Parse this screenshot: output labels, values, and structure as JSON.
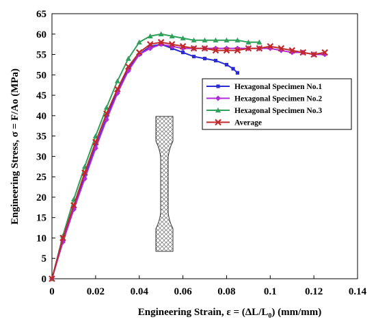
{
  "chart_data": {
    "type": "line",
    "xlabel": "Engineering Strain, ε = (ΔL/L",
    "xlabel_sub": "0",
    "xlabel_tail": ") (mm/mm)",
    "ylabel": "Engineering Stress, σ = F/Ao (MPa)",
    "xlim": [
      0,
      0.14
    ],
    "ylim": [
      0,
      65
    ],
    "xticks": [
      0,
      0.02,
      0.04,
      0.06,
      0.08,
      0.1,
      0.12,
      0.14
    ],
    "xtick_labels": [
      "0",
      "0.02",
      "0.04",
      "0.06",
      "0.08",
      "0.1",
      "0.12",
      "0.14"
    ],
    "yticks": [
      0,
      5,
      10,
      15,
      20,
      25,
      30,
      35,
      40,
      45,
      50,
      55,
      60,
      65
    ],
    "ytick_labels": [
      "0",
      "5",
      "10",
      "15",
      "20",
      "25",
      "30",
      "35",
      "40",
      "45",
      "50",
      "55",
      "60",
      "65"
    ],
    "grid": false,
    "legend_position": "right",
    "series": [
      {
        "name": "Hexagonal Specimen No.1",
        "color": "#2b2bd6",
        "marker": "square",
        "x": [
          0,
          0.005,
          0.01,
          0.015,
          0.02,
          0.025,
          0.03,
          0.035,
          0.04,
          0.045,
          0.05,
          0.055,
          0.06,
          0.065,
          0.07,
          0.075,
          0.08,
          0.083,
          0.085
        ],
        "y": [
          0,
          9.5,
          17.5,
          25,
          32.5,
          39.5,
          46,
          51.5,
          55,
          57,
          57.5,
          56.5,
          55.5,
          54.5,
          54,
          53.5,
          52.5,
          51.5,
          50.5
        ]
      },
      {
        "name": "Hexagonal Specimen No.2",
        "color": "#b02cd8",
        "marker": "diamond",
        "x": [
          0,
          0.005,
          0.01,
          0.015,
          0.02,
          0.025,
          0.03,
          0.035,
          0.04,
          0.045,
          0.05,
          0.055,
          0.06,
          0.065,
          0.07,
          0.075,
          0.08,
          0.085,
          0.09,
          0.095,
          0.1,
          0.105,
          0.11,
          0.115,
          0.12,
          0.125
        ],
        "y": [
          0,
          9,
          17,
          24.5,
          32,
          39,
          45.5,
          51,
          55,
          56.5,
          57.5,
          57,
          56.5,
          56.5,
          56.5,
          56.5,
          56.5,
          56.5,
          56.5,
          56.5,
          56.5,
          56,
          55.5,
          55.5,
          55,
          55
        ]
      },
      {
        "name": "Hexagonal Specimen No.3",
        "color": "#2fa05a",
        "marker": "triangle",
        "x": [
          0,
          0.005,
          0.01,
          0.015,
          0.02,
          0.025,
          0.03,
          0.035,
          0.04,
          0.045,
          0.05,
          0.055,
          0.06,
          0.065,
          0.07,
          0.075,
          0.08,
          0.085,
          0.09,
          0.095
        ],
        "y": [
          0,
          10.5,
          19.5,
          27.5,
          35,
          42,
          48.5,
          54,
          58,
          59.5,
          60,
          59.5,
          59,
          58.5,
          58.5,
          58.5,
          58.5,
          58.5,
          58,
          58
        ]
      },
      {
        "name": "Average",
        "color": "#c0282a",
        "marker": "x",
        "x": [
          0,
          0.005,
          0.01,
          0.015,
          0.02,
          0.025,
          0.03,
          0.035,
          0.04,
          0.045,
          0.05,
          0.055,
          0.06,
          0.065,
          0.07,
          0.075,
          0.08,
          0.085,
          0.09,
          0.095,
          0.1,
          0.105,
          0.11,
          0.115,
          0.12,
          0.125
        ],
        "y": [
          0,
          10,
          18,
          26,
          33.5,
          40.5,
          46.5,
          52,
          55.5,
          57.5,
          58,
          57.5,
          57,
          56.5,
          56.5,
          56,
          56,
          56,
          56.5,
          56.5,
          57,
          56.5,
          56,
          55.5,
          55,
          55.5
        ]
      }
    ]
  }
}
